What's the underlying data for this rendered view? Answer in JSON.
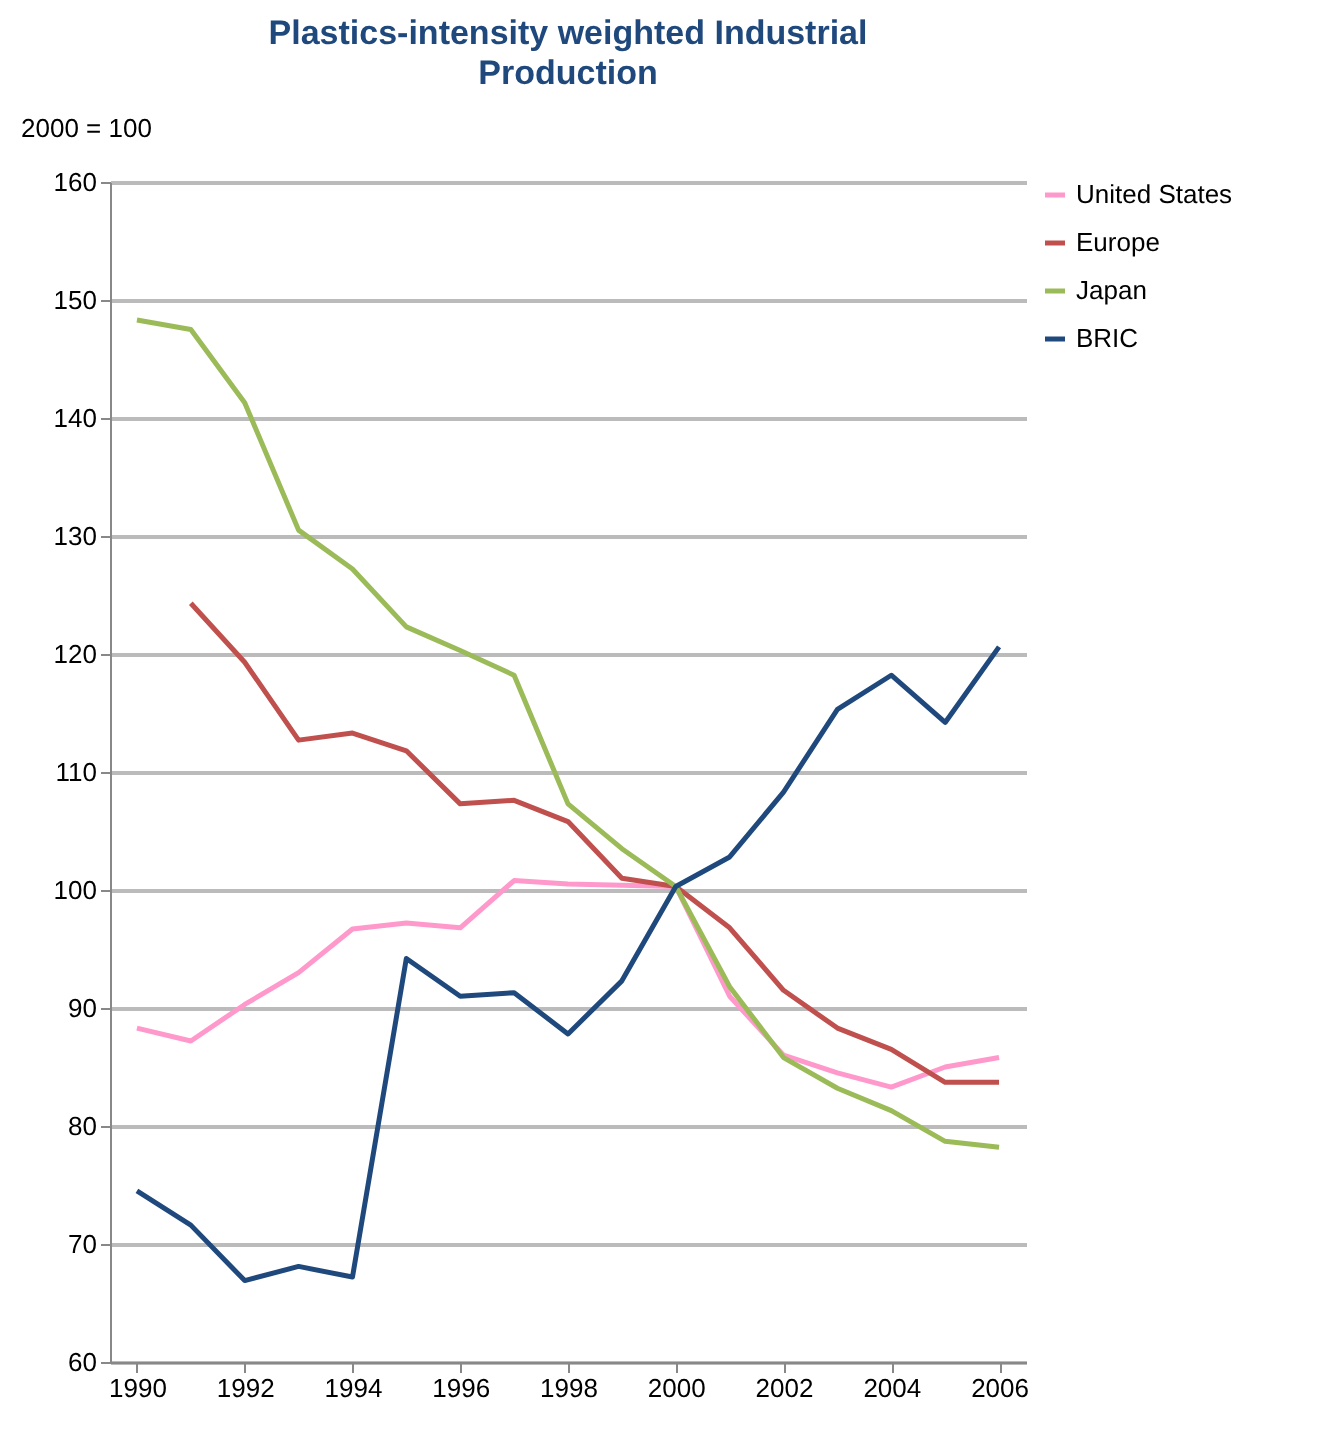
{
  "chart_data": {
    "type": "line",
    "title": "Plastics-intensity weighted Industrial Production",
    "ylabel": "2000 = 100",
    "x": [
      1990,
      1991,
      1992,
      1993,
      1994,
      1995,
      1996,
      1997,
      1998,
      1999,
      2000,
      2001,
      2002,
      2003,
      2004,
      2005,
      2006
    ],
    "xlim": [
      1989.5,
      2006.5
    ],
    "xticks": [
      1990,
      1992,
      1994,
      1996,
      1998,
      2000,
      2002,
      2004,
      2006
    ],
    "ylim": [
      60,
      160
    ],
    "yticks": [
      60,
      70,
      80,
      90,
      100,
      110,
      120,
      130,
      140,
      150,
      160
    ],
    "grid": "y",
    "legend": "right",
    "line_style": "solid",
    "marker": "none",
    "series": [
      {
        "name": "United States",
        "color": "#ff99cc",
        "values": [
          88.3,
          87.2,
          90.3,
          93,
          96.7,
          97.2,
          96.8,
          100.8,
          100.5,
          100.4,
          100.3,
          91,
          86,
          84.5,
          83.3,
          85,
          85.8
        ]
      },
      {
        "name": "Europe",
        "color": "#c0504d",
        "values": [
          null,
          124.3,
          119.3,
          112.7,
          113.3,
          111.8,
          107.3,
          107.6,
          105.8,
          101,
          100.3,
          96.8,
          91.5,
          88.3,
          86.5,
          83.7,
          83.7
        ]
      },
      {
        "name": "Japan",
        "color": "#9bbb59",
        "values": [
          148.3,
          147.5,
          141.3,
          130.5,
          127.2,
          122.3,
          120.3,
          118.2,
          107.3,
          103.5,
          100.3,
          91.8,
          85.8,
          83.2,
          81.3,
          78.7,
          78.2
        ]
      },
      {
        "name": "BRIC",
        "color": "#1f497d",
        "values": [
          74.5,
          71.6,
          66.9,
          68.1,
          67.2,
          94.2,
          91,
          91.3,
          87.8,
          92.3,
          100.3,
          102.8,
          108.3,
          115.3,
          118.2,
          114.2,
          120.6
        ]
      }
    ]
  }
}
